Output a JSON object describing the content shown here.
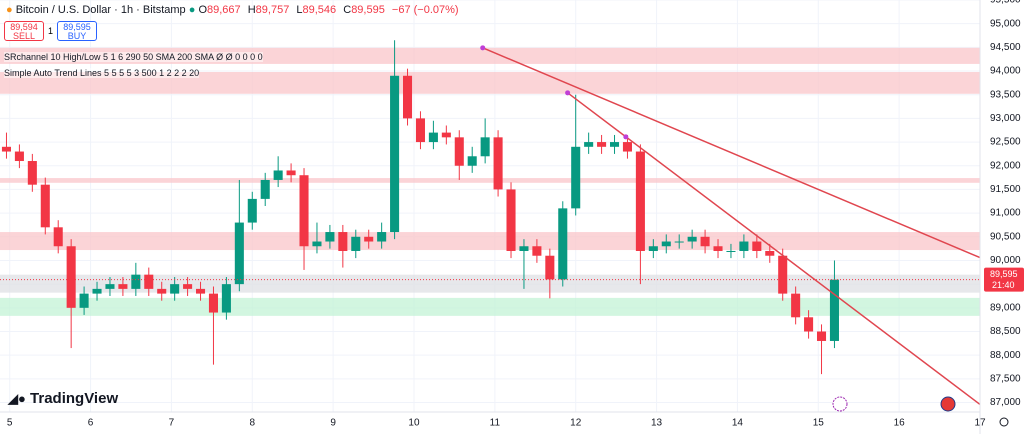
{
  "header": {
    "symbol": "Bitcoin / U.S. Dollar · 1h · Bitstamp",
    "o_label": "O",
    "open": "89,667",
    "h_label": "H",
    "high": "89,757",
    "l_label": "L",
    "low": "89,546",
    "c_label": "C",
    "close": "89,595",
    "change": "−67 (−0.07%)",
    "sell_price": "89,594",
    "sell": "SELL",
    "spread": "1",
    "buy_price": "89,595",
    "buy": "BUY"
  },
  "indicators": [
    "SRchannel 10 High/Low 5 1 6 290 50 SMA 200 SMA  Ø Ø 0 0 0 0",
    "Simple Auto Trend Lines 5 5 5 5 3 500 1 2 2 2 20"
  ],
  "logo": "TradingView",
  "chart_data": {
    "type": "candlestick",
    "xlim": [
      4.88,
      17
    ],
    "xticks": [
      5,
      6,
      7,
      8,
      9,
      10,
      11,
      12,
      13,
      14,
      15,
      16,
      17
    ],
    "ylim": [
      86800,
      95500
    ],
    "yticks": [
      {
        "value": 87000,
        "label": "87,000"
      },
      {
        "value": 87500,
        "label": "87,500"
      },
      {
        "value": 88000,
        "label": "88,000"
      },
      {
        "value": 88500,
        "label": "88,500"
      },
      {
        "value": 89000,
        "label": "89,000"
      },
      {
        "value": 89500,
        "label": "89,500"
      },
      {
        "value": 90000,
        "label": "90,000"
      },
      {
        "value": 90500,
        "label": "90,500"
      },
      {
        "value": 91000,
        "label": "91,000"
      },
      {
        "value": 91500,
        "label": "91,500"
      },
      {
        "value": 92000,
        "label": "92,000"
      },
      {
        "value": 92500,
        "label": "92,500"
      },
      {
        "value": 93000,
        "label": "93,000"
      },
      {
        "value": 93500,
        "label": "93,500"
      },
      {
        "value": 94000,
        "label": "94,000"
      },
      {
        "value": 94500,
        "label": "94,500"
      },
      {
        "value": 95000,
        "label": "95,000"
      },
      {
        "value": 95500,
        "label": "95,500"
      }
    ],
    "grid": true,
    "up_color": "#089981",
    "down_color": "#f23645",
    "series": [
      {
        "name": "BTCUSD",
        "x": [
          4.96,
          5.12,
          5.28,
          5.44,
          5.6,
          5.76,
          5.92,
          6.08,
          6.24,
          6.4,
          6.56,
          6.72,
          6.88,
          7.04,
          7.2,
          7.36,
          7.52,
          7.68,
          7.84,
          8.0,
          8.16,
          8.32,
          8.48,
          8.64,
          8.8,
          8.96,
          9.12,
          9.28,
          9.44,
          9.6,
          9.76,
          9.92,
          10.08,
          10.24,
          10.4,
          10.56,
          10.72,
          10.88,
          11.04,
          11.2,
          11.36,
          11.52,
          11.68,
          11.84,
          12.0,
          12.16,
          12.32,
          12.48,
          12.64,
          12.8,
          12.96,
          13.12,
          13.28,
          13.44,
          13.6,
          13.76,
          13.92,
          14.08,
          14.24,
          14.4,
          14.56,
          14.72,
          14.88,
          15.04,
          15.2
        ],
        "open": [
          92400,
          92300,
          92100,
          91600,
          90700,
          90300,
          89000,
          89300,
          89400,
          89500,
          89400,
          89700,
          89400,
          89300,
          89500,
          89400,
          89300,
          88900,
          89500,
          90800,
          91300,
          91700,
          91900,
          91800,
          90300,
          90400,
          90600,
          90200,
          90500,
          90400,
          90600,
          93900,
          93000,
          92500,
          92700,
          92600,
          92000,
          92200,
          92600,
          91500,
          90200,
          90300,
          90100,
          89600,
          91100,
          92400,
          92500,
          92400,
          92500,
          92300,
          90200,
          90300,
          90400,
          90400,
          90500,
          90300,
          90200,
          90200,
          90400,
          90200,
          90100,
          89300,
          88800,
          88500,
          88300
        ],
        "high": [
          92700,
          92450,
          92250,
          91750,
          90850,
          90450,
          89450,
          89550,
          89650,
          89650,
          89950,
          89850,
          89550,
          89650,
          89650,
          89550,
          89450,
          89650,
          91700,
          91450,
          91850,
          92200,
          92050,
          91950,
          90800,
          90750,
          90750,
          90650,
          90650,
          90800,
          94650,
          94050,
          93150,
          92950,
          92850,
          92750,
          92400,
          93000,
          92750,
          91650,
          90450,
          90450,
          90250,
          91250,
          93500,
          92700,
          92650,
          92650,
          92650,
          92450,
          90450,
          90550,
          90550,
          90650,
          90650,
          90450,
          90350,
          90550,
          90550,
          90350,
          90250,
          89450,
          88950,
          88650,
          90000
        ],
        "low": [
          92150,
          91950,
          91450,
          90550,
          90150,
          88150,
          88850,
          89150,
          89250,
          89250,
          89250,
          89250,
          89150,
          89150,
          89250,
          89150,
          87800,
          88750,
          89350,
          90650,
          91150,
          91550,
          91650,
          89800,
          90150,
          90250,
          89850,
          90050,
          90250,
          90250,
          90450,
          92850,
          92350,
          92350,
          92450,
          91700,
          91850,
          92050,
          91350,
          90050,
          89400,
          89950,
          89200,
          89450,
          90950,
          92250,
          92250,
          92250,
          92150,
          89500,
          90050,
          90150,
          90250,
          90250,
          90150,
          90050,
          90050,
          90050,
          90050,
          89950,
          89150,
          88650,
          88350,
          87600,
          88150
        ],
        "close": [
          92300,
          92100,
          91600,
          90700,
          90300,
          89000,
          89300,
          89400,
          89500,
          89400,
          89700,
          89400,
          89300,
          89500,
          89400,
          89300,
          88900,
          89500,
          90800,
          91300,
          91700,
          91900,
          91800,
          90300,
          90400,
          90600,
          90200,
          90500,
          90400,
          90600,
          93900,
          93000,
          92500,
          92700,
          92600,
          92000,
          92200,
          92600,
          91500,
          90200,
          90300,
          90100,
          89600,
          91100,
          92400,
          92500,
          92400,
          92500,
          92300,
          90200,
          90300,
          90400,
          90400,
          90500,
          90300,
          90200,
          90200,
          90400,
          90200,
          90100,
          89300,
          88800,
          88500,
          88300,
          89595
        ]
      }
    ],
    "zones": [
      {
        "from": 94150,
        "to": 94490,
        "color": "#f9c6c9"
      },
      {
        "from": 93520,
        "to": 93980,
        "color": "#f9c6c9"
      },
      {
        "from": 91640,
        "to": 91740,
        "color": "#f9c6c9"
      },
      {
        "from": 90220,
        "to": 90600,
        "color": "#f9c6c9"
      },
      {
        "from": 89320,
        "to": 89700,
        "color": "#dfe0e4"
      },
      {
        "from": 88830,
        "to": 89210,
        "color": "#c3f3d6"
      }
    ],
    "trendlines": [
      {
        "x": [
          10.85,
          17
        ],
        "y": [
          94490,
          90060
        ]
      },
      {
        "x": [
          11.9,
          17
        ],
        "y": [
          93540,
          86960
        ]
      }
    ],
    "trend_color": "#e0464f",
    "pivots": {
      "x": [
        10.85,
        11.9,
        12.62
      ],
      "y": [
        94490,
        93540,
        92610
      ]
    },
    "last_price": {
      "value": 89595,
      "label": "89,595"
    },
    "countdown": "21:40"
  }
}
